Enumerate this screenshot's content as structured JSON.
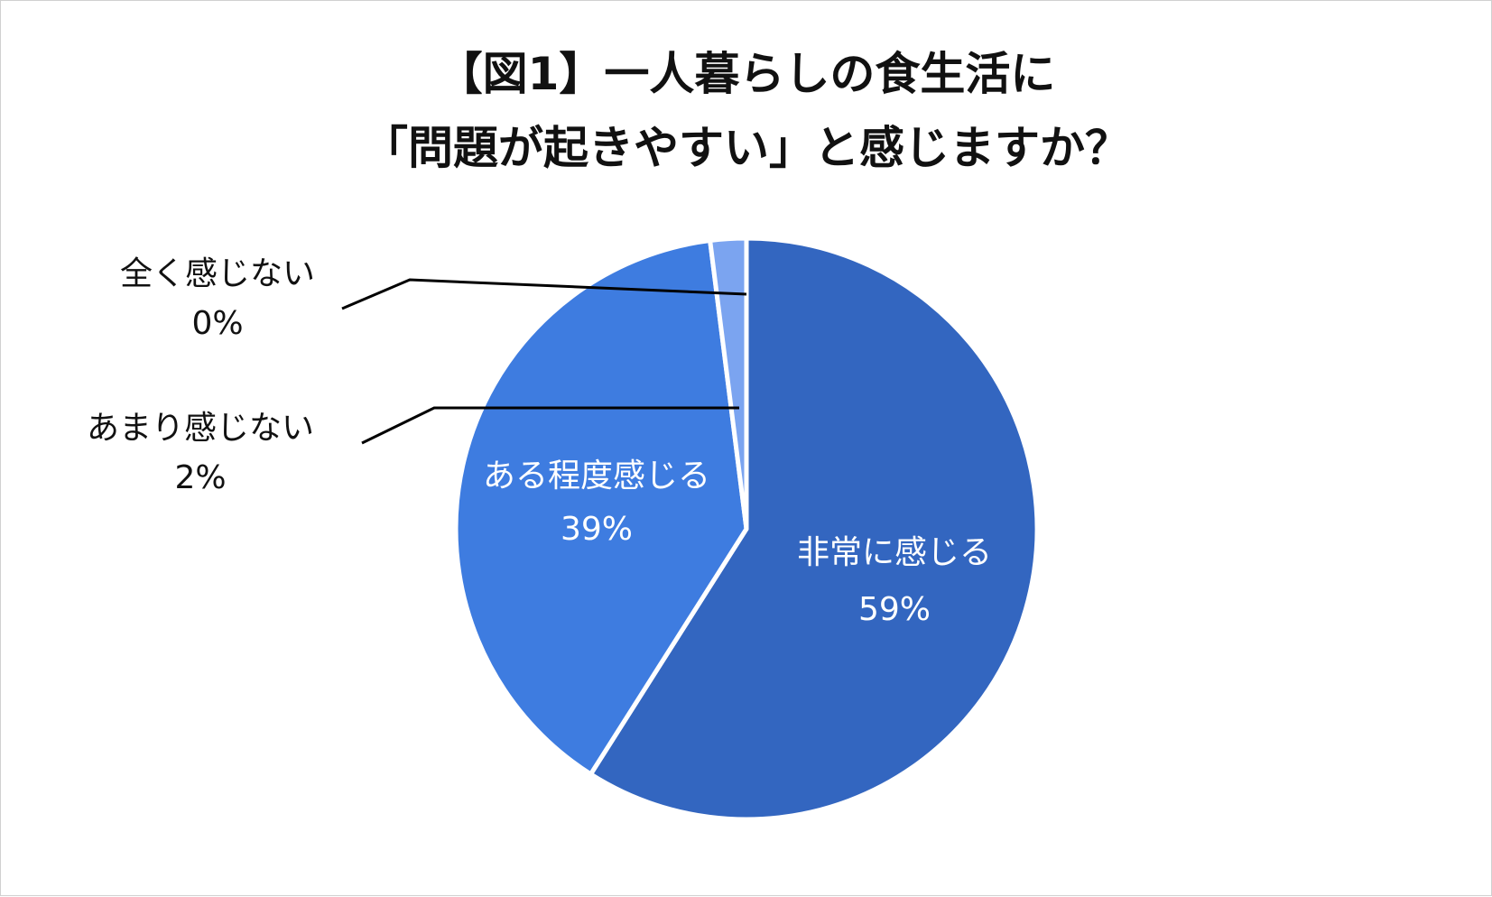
{
  "chart_data": {
    "type": "pie",
    "title_lines": [
      "【図1】一人暮らしの食生活に",
      "「問題が起きやすい」と感じますか？"
    ],
    "start_angle_deg": 0,
    "direction": "clockwise",
    "slices": [
      {
        "label": "非常に感じる",
        "value": 59,
        "display": "59%",
        "color": "#3366C0",
        "label_position": "inside"
      },
      {
        "label": "ある程度感じる",
        "value": 39,
        "display": "39%",
        "color": "#3E7CE0",
        "label_position": "inside"
      },
      {
        "label": "あまり感じない",
        "value": 2,
        "display": "2%",
        "color": "#7BA4F0",
        "label_position": "outside"
      },
      {
        "label": "全く感じない",
        "value": 0,
        "display": "0%",
        "color": "#A9C2F5",
        "label_position": "outside"
      }
    ],
    "slice_border_color": "#ffffff"
  }
}
